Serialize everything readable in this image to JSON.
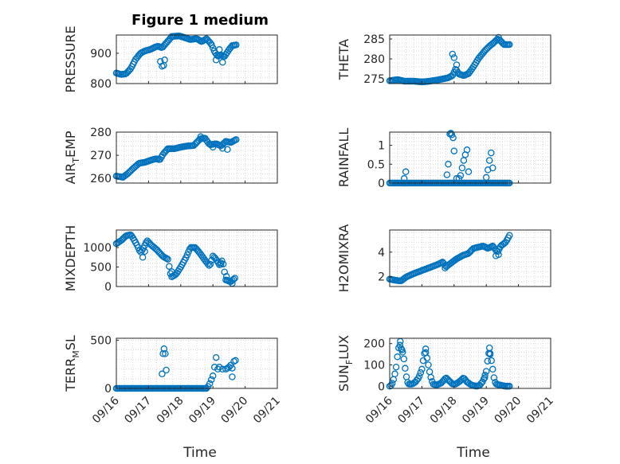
{
  "chart_data": {
    "type": "scatter",
    "title": "Figure 1 medium",
    "xlabel": "Time",
    "x_ticks": [
      "09/16",
      "09/17",
      "09/18",
      "09/19",
      "09/20",
      "09/21"
    ],
    "x_range_days": [
      0,
      5
    ],
    "marker": "open-circle",
    "color": "#0072BD",
    "panels": [
      {
        "id": "pressure",
        "ylabel": "PRESSURE",
        "ylabel_sub": "",
        "ylim": [
          800,
          960
        ],
        "yticks": [
          800,
          900
        ],
        "ytick_labels": [
          "800",
          "900"
        ],
        "series_knots": [
          [
            0,
            835
          ],
          [
            0.15,
            830
          ],
          [
            0.3,
            832
          ],
          [
            0.45,
            850
          ],
          [
            0.6,
            880
          ],
          [
            0.75,
            900
          ],
          [
            0.9,
            908
          ],
          [
            1.05,
            912
          ],
          [
            1.2,
            920
          ],
          [
            1.3,
            923
          ],
          [
            1.42,
            918
          ],
          [
            1.62,
            942
          ],
          [
            1.72,
            955
          ],
          [
            1.95,
            957
          ],
          [
            2.1,
            952
          ],
          [
            2.3,
            945
          ],
          [
            2.5,
            948
          ],
          [
            2.65,
            938
          ],
          [
            2.8,
            948
          ],
          [
            2.95,
            930
          ],
          [
            3.05,
            905
          ],
          [
            3.15,
            890
          ],
          [
            3.25,
            895
          ],
          [
            3.35,
            888
          ],
          [
            3.5,
            912
          ],
          [
            3.6,
            925
          ],
          [
            3.75,
            928
          ]
        ],
        "outliers": [
          [
            1.37,
            873
          ],
          [
            1.42,
            857
          ],
          [
            1.47,
            860
          ],
          [
            1.5,
            878
          ],
          [
            3.1,
            878
          ],
          [
            3.2,
            912
          ],
          [
            3.3,
            870
          ]
        ]
      },
      {
        "id": "theta",
        "ylabel": "THETA",
        "ylabel_sub": "",
        "ylim": [
          273.8,
          286
        ],
        "yticks": [
          275,
          280,
          285
        ],
        "ytick_labels": [
          "275",
          "280",
          "285"
        ],
        "series_knots": [
          [
            0,
            274.5
          ],
          [
            0.25,
            274.8
          ],
          [
            0.45,
            274.4
          ],
          [
            0.75,
            274.4
          ],
          [
            1.0,
            274.2
          ],
          [
            1.25,
            274.4
          ],
          [
            1.55,
            274.8
          ],
          [
            1.8,
            275.2
          ],
          [
            1.95,
            275.8
          ],
          [
            2.05,
            277.5
          ],
          [
            2.15,
            276.2
          ],
          [
            2.3,
            275.8
          ],
          [
            2.45,
            276.3
          ],
          [
            2.6,
            278.0
          ],
          [
            2.75,
            280.0
          ],
          [
            2.95,
            282.0
          ],
          [
            3.1,
            283.2
          ],
          [
            3.25,
            284.2
          ],
          [
            3.35,
            285.0
          ],
          [
            3.45,
            284.5
          ],
          [
            3.55,
            283.6
          ],
          [
            3.75,
            283.6
          ]
        ],
        "outliers": [
          [
            1.95,
            281.2
          ],
          [
            2.0,
            280.3
          ],
          [
            2.08,
            278.5
          ],
          [
            3.38,
            285.4
          ]
        ]
      },
      {
        "id": "air_temp",
        "ylabel": "AIR",
        "ylabel_sub": "T",
        "ylabel_suffix": "EMP",
        "ylim": [
          258,
          280
        ],
        "yticks": [
          260,
          270,
          280
        ],
        "ytick_labels": [
          "260",
          "270",
          "280"
        ],
        "series_knots": [
          [
            0,
            261
          ],
          [
            0.2,
            260.5
          ],
          [
            0.35,
            262
          ],
          [
            0.5,
            264
          ],
          [
            0.7,
            266.5
          ],
          [
            0.9,
            267
          ],
          [
            1.1,
            268
          ],
          [
            1.25,
            268.5
          ],
          [
            1.35,
            268
          ],
          [
            1.45,
            270.5
          ],
          [
            1.6,
            272.8
          ],
          [
            1.8,
            272.8
          ],
          [
            2.0,
            273.5
          ],
          [
            2.2,
            274
          ],
          [
            2.4,
            274.2
          ],
          [
            2.6,
            277
          ],
          [
            2.75,
            277.5
          ],
          [
            2.9,
            274.5
          ],
          [
            3.1,
            275
          ],
          [
            3.25,
            274
          ],
          [
            3.4,
            276
          ],
          [
            3.55,
            275.5
          ],
          [
            3.75,
            277
          ]
        ],
        "outliers": [
          [
            2.62,
            278
          ],
          [
            3.0,
            273.5
          ],
          [
            3.3,
            273
          ],
          [
            3.45,
            272.5
          ]
        ]
      },
      {
        "id": "rainfall",
        "ylabel": "RAINFALL",
        "ylabel_sub": "",
        "ylim": [
          0,
          1.35
        ],
        "yticks": [
          0,
          0.5,
          1
        ],
        "ytick_labels": [
          "0",
          "0.5",
          "1"
        ],
        "series_knots": [
          [
            0,
            0
          ],
          [
            3.75,
            0
          ]
        ],
        "outliers": [
          [
            0.45,
            0.12
          ],
          [
            0.5,
            0.3
          ],
          [
            1.78,
            0.22
          ],
          [
            1.82,
            0.5
          ],
          [
            1.87,
            1.3
          ],
          [
            1.9,
            1.32
          ],
          [
            1.93,
            1.28
          ],
          [
            1.97,
            1.2
          ],
          [
            2.0,
            0.85
          ],
          [
            2.08,
            0.12
          ],
          [
            2.15,
            0.12
          ],
          [
            2.2,
            0.2
          ],
          [
            2.25,
            0.4
          ],
          [
            2.3,
            0.6
          ],
          [
            2.35,
            0.75
          ],
          [
            2.4,
            0.88
          ],
          [
            2.45,
            0.3
          ],
          [
            3.0,
            0.15
          ],
          [
            3.05,
            0.35
          ],
          [
            3.1,
            0.6
          ],
          [
            3.15,
            0.8
          ],
          [
            3.2,
            0.4
          ]
        ]
      },
      {
        "id": "mixdepth",
        "ylabel": "MIXDEPTH",
        "ylabel_sub": "",
        "ylim": [
          0,
          1450
        ],
        "yticks": [
          0,
          500,
          1000
        ],
        "ytick_labels": [
          "0",
          "500",
          "1000"
        ],
        "series_knots": [
          [
            0,
            1100
          ],
          [
            0.15,
            1180
          ],
          [
            0.3,
            1300
          ],
          [
            0.45,
            1330
          ],
          [
            0.55,
            1200
          ],
          [
            0.65,
            1050
          ],
          [
            0.75,
            870
          ],
          [
            0.85,
            1000
          ],
          [
            0.95,
            1180
          ],
          [
            1.1,
            1050
          ],
          [
            1.25,
            950
          ],
          [
            1.45,
            770
          ],
          [
            1.6,
            700
          ],
          [
            1.7,
            240
          ],
          [
            1.85,
            310
          ],
          [
            2.0,
            500
          ],
          [
            2.15,
            720
          ],
          [
            2.3,
            1000
          ],
          [
            2.45,
            1000
          ],
          [
            2.6,
            850
          ],
          [
            2.75,
            680
          ],
          [
            2.9,
            520
          ],
          [
            3.0,
            780
          ],
          [
            3.1,
            700
          ],
          [
            3.2,
            560
          ],
          [
            3.3,
            680
          ],
          [
            3.4,
            170
          ],
          [
            3.55,
            120
          ],
          [
            3.7,
            230
          ]
        ],
        "outliers": [
          [
            0.82,
            750
          ],
          [
            0.88,
            900
          ],
          [
            1.72,
            380
          ],
          [
            3.25,
            570
          ],
          [
            3.42,
            260
          ],
          [
            3.6,
            80
          ]
        ]
      },
      {
        "id": "h2omixra",
        "ylabel": "H2OMIXRA",
        "ylabel_sub": "",
        "ylim": [
          1.2,
          5.8
        ],
        "yticks": [
          2,
          4
        ],
        "ytick_labels": [
          "2",
          "4"
        ],
        "series_knots": [
          [
            0,
            1.8
          ],
          [
            0.2,
            1.7
          ],
          [
            0.35,
            1.65
          ],
          [
            0.5,
            1.95
          ],
          [
            0.7,
            2.2
          ],
          [
            0.9,
            2.4
          ],
          [
            1.1,
            2.6
          ],
          [
            1.3,
            2.8
          ],
          [
            1.5,
            3.0
          ],
          [
            1.65,
            3.2
          ],
          [
            1.75,
            2.8
          ],
          [
            1.9,
            3.1
          ],
          [
            2.05,
            3.4
          ],
          [
            2.25,
            3.7
          ],
          [
            2.45,
            3.9
          ],
          [
            2.6,
            4.3
          ],
          [
            2.75,
            4.4
          ],
          [
            2.9,
            4.5
          ],
          [
            3.05,
            4.3
          ],
          [
            3.2,
            4.5
          ],
          [
            3.35,
            4.0
          ],
          [
            3.45,
            4.5
          ],
          [
            3.6,
            4.8
          ],
          [
            3.75,
            5.5
          ]
        ],
        "outliers": [
          [
            1.72,
            2.7
          ],
          [
            3.3,
            3.7
          ],
          [
            3.38,
            3.8
          ]
        ]
      },
      {
        "id": "terr_msl",
        "ylabel": "TERR",
        "ylabel_sub": "M",
        "ylabel_suffix": "SL",
        "ylim": [
          0,
          520
        ],
        "yticks": [
          0,
          500
        ],
        "ytick_labels": [
          "0",
          "500"
        ],
        "series_knots": [
          [
            0,
            0
          ],
          [
            2.82,
            0
          ]
        ],
        "outliers": [
          [
            1.42,
            150
          ],
          [
            1.45,
            360
          ],
          [
            1.48,
            410
          ],
          [
            1.52,
            360
          ],
          [
            1.55,
            190
          ],
          [
            2.9,
            50
          ],
          [
            2.95,
            90
          ],
          [
            3.0,
            130
          ],
          [
            3.05,
            220
          ],
          [
            3.1,
            320
          ],
          [
            3.15,
            200
          ],
          [
            3.2,
            220
          ],
          [
            3.3,
            200
          ],
          [
            3.4,
            200
          ],
          [
            3.45,
            210
          ],
          [
            3.5,
            220
          ],
          [
            3.55,
            240
          ],
          [
            3.6,
            210
          ],
          [
            3.65,
            280
          ],
          [
            3.7,
            290
          ],
          [
            2.85,
            20
          ],
          [
            3.6,
            120
          ]
        ]
      },
      {
        "id": "sun_flux",
        "ylabel": "SUN",
        "ylabel_sub": "F",
        "ylabel_suffix": "LUX",
        "ylim": [
          -10,
          225
        ],
        "yticks": [
          0,
          100,
          200
        ],
        "ytick_labels": [
          "0",
          "100",
          "200"
        ],
        "series_knots": [
          [
            0,
            0
          ],
          [
            0.05,
            5
          ],
          [
            0.1,
            20
          ],
          [
            0.15,
            50
          ],
          [
            0.2,
            90
          ],
          [
            0.25,
            150
          ],
          [
            0.3,
            200
          ],
          [
            0.35,
            180
          ],
          [
            0.4,
            160
          ],
          [
            0.45,
            120
          ],
          [
            0.5,
            60
          ],
          [
            0.55,
            20
          ],
          [
            0.6,
            10
          ],
          [
            0.7,
            10
          ],
          [
            0.8,
            20
          ],
          [
            0.9,
            40
          ],
          [
            1.0,
            80
          ],
          [
            1.05,
            130
          ],
          [
            1.1,
            170
          ],
          [
            1.15,
            140
          ],
          [
            1.2,
            100
          ],
          [
            1.25,
            60
          ],
          [
            1.3,
            30
          ],
          [
            1.35,
            10
          ],
          [
            1.45,
            5
          ],
          [
            1.6,
            15
          ],
          [
            1.75,
            40
          ],
          [
            1.85,
            25
          ],
          [
            1.95,
            10
          ],
          [
            2.05,
            10
          ],
          [
            2.15,
            20
          ],
          [
            2.3,
            40
          ],
          [
            2.4,
            20
          ],
          [
            2.55,
            5
          ],
          [
            2.7,
            0
          ],
          [
            2.8,
            5
          ],
          [
            2.9,
            25
          ],
          [
            3.0,
            70
          ],
          [
            3.05,
            130
          ],
          [
            3.1,
            170
          ],
          [
            3.15,
            130
          ],
          [
            3.2,
            80
          ],
          [
            3.25,
            30
          ],
          [
            3.3,
            10
          ],
          [
            3.45,
            5
          ],
          [
            3.6,
            0
          ],
          [
            3.75,
            0
          ]
        ],
        "outliers": [
          [
            0.33,
            210
          ],
          [
            0.38,
            170
          ],
          [
            1.12,
            175
          ],
          [
            3.1,
            180
          ],
          [
            3.12,
            150
          ],
          [
            2.95,
            40
          ]
        ]
      }
    ]
  }
}
